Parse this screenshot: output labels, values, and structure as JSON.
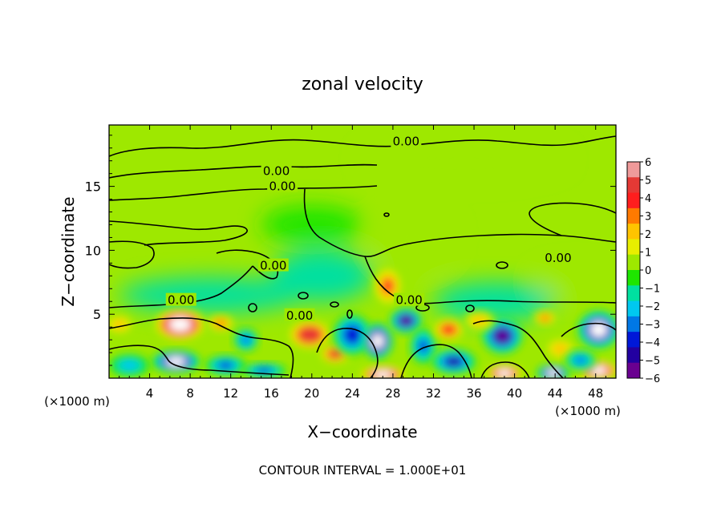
{
  "chart_data": {
    "type": "heatmap",
    "title": "zonal velocity",
    "xlabel": "X−coordinate",
    "ylabel": "Z−coordinate",
    "x_unit_left": "(×1000 m)",
    "x_unit_right": "(×1000 m)",
    "footer": "CONTOUR INTERVAL = 1.000E+01",
    "xlim": [
      0,
      50
    ],
    "ylim": [
      0,
      19.8
    ],
    "x_ticks": [
      4,
      8,
      12,
      16,
      20,
      24,
      28,
      32,
      36,
      40,
      44,
      48
    ],
    "y_ticks": [
      5,
      10,
      15
    ],
    "colorbar": {
      "ticks": [
        "6",
        "5",
        "4",
        "3",
        "2",
        "1",
        "0",
        "−1",
        "−2",
        "−3",
        "−4",
        "−5",
        "−6"
      ],
      "range": [
        -6,
        6
      ],
      "colors": [
        "#ef9a9a",
        "#e53935",
        "#ff1e1e",
        "#ff7a00",
        "#ffc400",
        "#e8ee00",
        "#9ee800",
        "#1ee600",
        "#00e0a0",
        "#00c8f0",
        "#0078e6",
        "#0018d8",
        "#2200a0",
        "#6a0090"
      ]
    },
    "background_value": 0.3,
    "contour_labels": [
      {
        "text": "0.00",
        "x": 29.3,
        "z": 18.5
      },
      {
        "text": "0.00",
        "x": 16.5,
        "z": 16.2
      },
      {
        "text": "0.00",
        "x": 17.1,
        "z": 15.0
      },
      {
        "text": "0.00",
        "x": 44.3,
        "z": 9.4
      },
      {
        "text": "0.00",
        "x": 16.2,
        "z": 8.8
      },
      {
        "text": "0.00",
        "x": 7.1,
        "z": 6.1
      },
      {
        "text": "0.00",
        "x": 18.8,
        "z": 4.9
      },
      {
        "text": "0.00",
        "x": 29.6,
        "z": 6.1
      }
    ],
    "anomalies": [
      {
        "x": 7.0,
        "z": 4.2,
        "value": 7.5,
        "rx": 2.6,
        "rz": 1.3
      },
      {
        "x": 6.6,
        "z": 1.3,
        "value": -7.0,
        "rx": 2.4,
        "rz": 0.9
      },
      {
        "x": 2.0,
        "z": 1.0,
        "value": -3.0,
        "rx": 2.0,
        "rz": 0.9
      },
      {
        "x": 1.0,
        "z": 4.2,
        "value": 3.0,
        "rx": 1.5,
        "rz": 0.8
      },
      {
        "x": 11.0,
        "z": 4.3,
        "value": 3.5,
        "rx": 1.4,
        "rz": 0.7
      },
      {
        "x": 13.5,
        "z": 3.0,
        "value": -3.5,
        "rx": 1.2,
        "rz": 0.9
      },
      {
        "x": 11.5,
        "z": 1.0,
        "value": -4.0,
        "rx": 2.0,
        "rz": 0.8
      },
      {
        "x": 15.3,
        "z": 0.6,
        "value": -4.0,
        "rx": 2.2,
        "rz": 0.6
      },
      {
        "x": 19.8,
        "z": 3.4,
        "value": 5.5,
        "rx": 2.2,
        "rz": 1.2
      },
      {
        "x": 22.3,
        "z": 1.9,
        "value": 5.0,
        "rx": 1.6,
        "rz": 0.8
      },
      {
        "x": 24.0,
        "z": 3.4,
        "value": -4.5,
        "rx": 1.9,
        "rz": 1.6
      },
      {
        "x": 26.5,
        "z": 2.9,
        "value": -7.5,
        "rx": 1.5,
        "rz": 1.4
      },
      {
        "x": 29.3,
        "z": 4.5,
        "value": -6.0,
        "rx": 1.6,
        "rz": 1.0
      },
      {
        "x": 27.5,
        "z": 7.2,
        "value": 4.0,
        "rx": 1.5,
        "rz": 1.6
      },
      {
        "x": 31.0,
        "z": 2.5,
        "value": -4.0,
        "rx": 1.3,
        "rz": 1.4
      },
      {
        "x": 27.0,
        "z": 0.3,
        "value": 6.5,
        "rx": 2.4,
        "rz": 0.7
      },
      {
        "x": 33.5,
        "z": 3.8,
        "value": 4.5,
        "rx": 1.6,
        "rz": 0.9
      },
      {
        "x": 34.0,
        "z": 1.3,
        "value": -5.0,
        "rx": 2.2,
        "rz": 1.0
      },
      {
        "x": 38.8,
        "z": 3.3,
        "value": -6.0,
        "rx": 2.0,
        "rz": 1.4
      },
      {
        "x": 36.5,
        "z": 4.5,
        "value": 2.5,
        "rx": 1.6,
        "rz": 0.8
      },
      {
        "x": 39.0,
        "z": 0.4,
        "value": 7.0,
        "rx": 1.9,
        "rz": 0.7
      },
      {
        "x": 43.8,
        "z": 0.4,
        "value": -7.0,
        "rx": 1.6,
        "rz": 0.7
      },
      {
        "x": 43.0,
        "z": 4.7,
        "value": 3.5,
        "rx": 1.2,
        "rz": 0.6
      },
      {
        "x": 44.5,
        "z": 2.3,
        "value": 3.0,
        "rx": 1.6,
        "rz": 0.9
      },
      {
        "x": 48.3,
        "z": 3.8,
        "value": -7.0,
        "rx": 2.1,
        "rz": 1.5
      },
      {
        "x": 48.3,
        "z": 0.6,
        "value": 7.0,
        "rx": 2.1,
        "rz": 0.8
      },
      {
        "x": 46.5,
        "z": 1.4,
        "value": -3.5,
        "rx": 1.5,
        "rz": 0.8
      },
      {
        "x": 10.0,
        "z": 6.5,
        "value": -1.2,
        "rx": 9.0,
        "rz": 1.4
      },
      {
        "x": 21.0,
        "z": 8.0,
        "value": -1.4,
        "rx": 5.0,
        "rz": 2.0
      },
      {
        "x": 20.0,
        "z": 12.0,
        "value": -0.5,
        "rx": 5.0,
        "rz": 1.5
      },
      {
        "x": 38.0,
        "z": 6.0,
        "value": -1.0,
        "rx": 6.0,
        "rz": 1.5
      },
      {
        "x": 46.0,
        "z": 7.5,
        "value": 0.8,
        "rx": 4.0,
        "rz": 1.2
      },
      {
        "x": 35.0,
        "z": 17.2,
        "value": 0.8,
        "rx": 10.0,
        "rz": 1.5
      },
      {
        "x": 30.0,
        "z": 11.0,
        "value": 0.7,
        "rx": 4.0,
        "rz": 2.5
      }
    ]
  }
}
